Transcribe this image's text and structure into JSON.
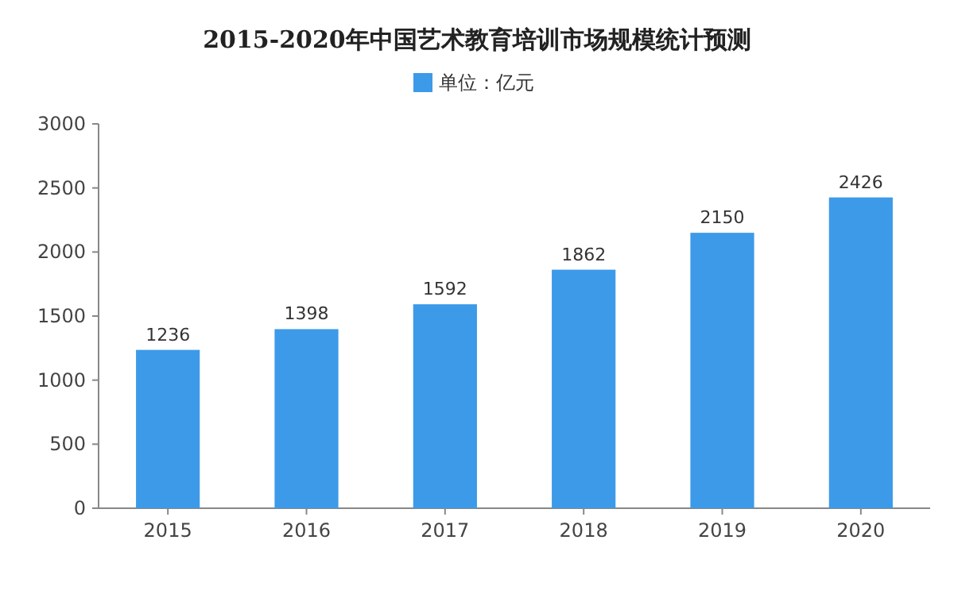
{
  "chart_data": {
    "type": "bar",
    "title": "2015-2020年中国艺术教育培训市场规模统计预测",
    "categories": [
      "2015",
      "2016",
      "2017",
      "2018",
      "2019",
      "2020"
    ],
    "series": [
      {
        "name": "单位：亿元",
        "color": "#3d9ae8",
        "values": [
          1236,
          1398,
          1592,
          1862,
          2150,
          2426
        ]
      }
    ],
    "ylim": [
      0,
      3000
    ],
    "yticks": [
      0,
      500,
      1000,
      1500,
      2000,
      2500,
      3000
    ],
    "data_labels": true,
    "legend": "top",
    "grid": false
  }
}
